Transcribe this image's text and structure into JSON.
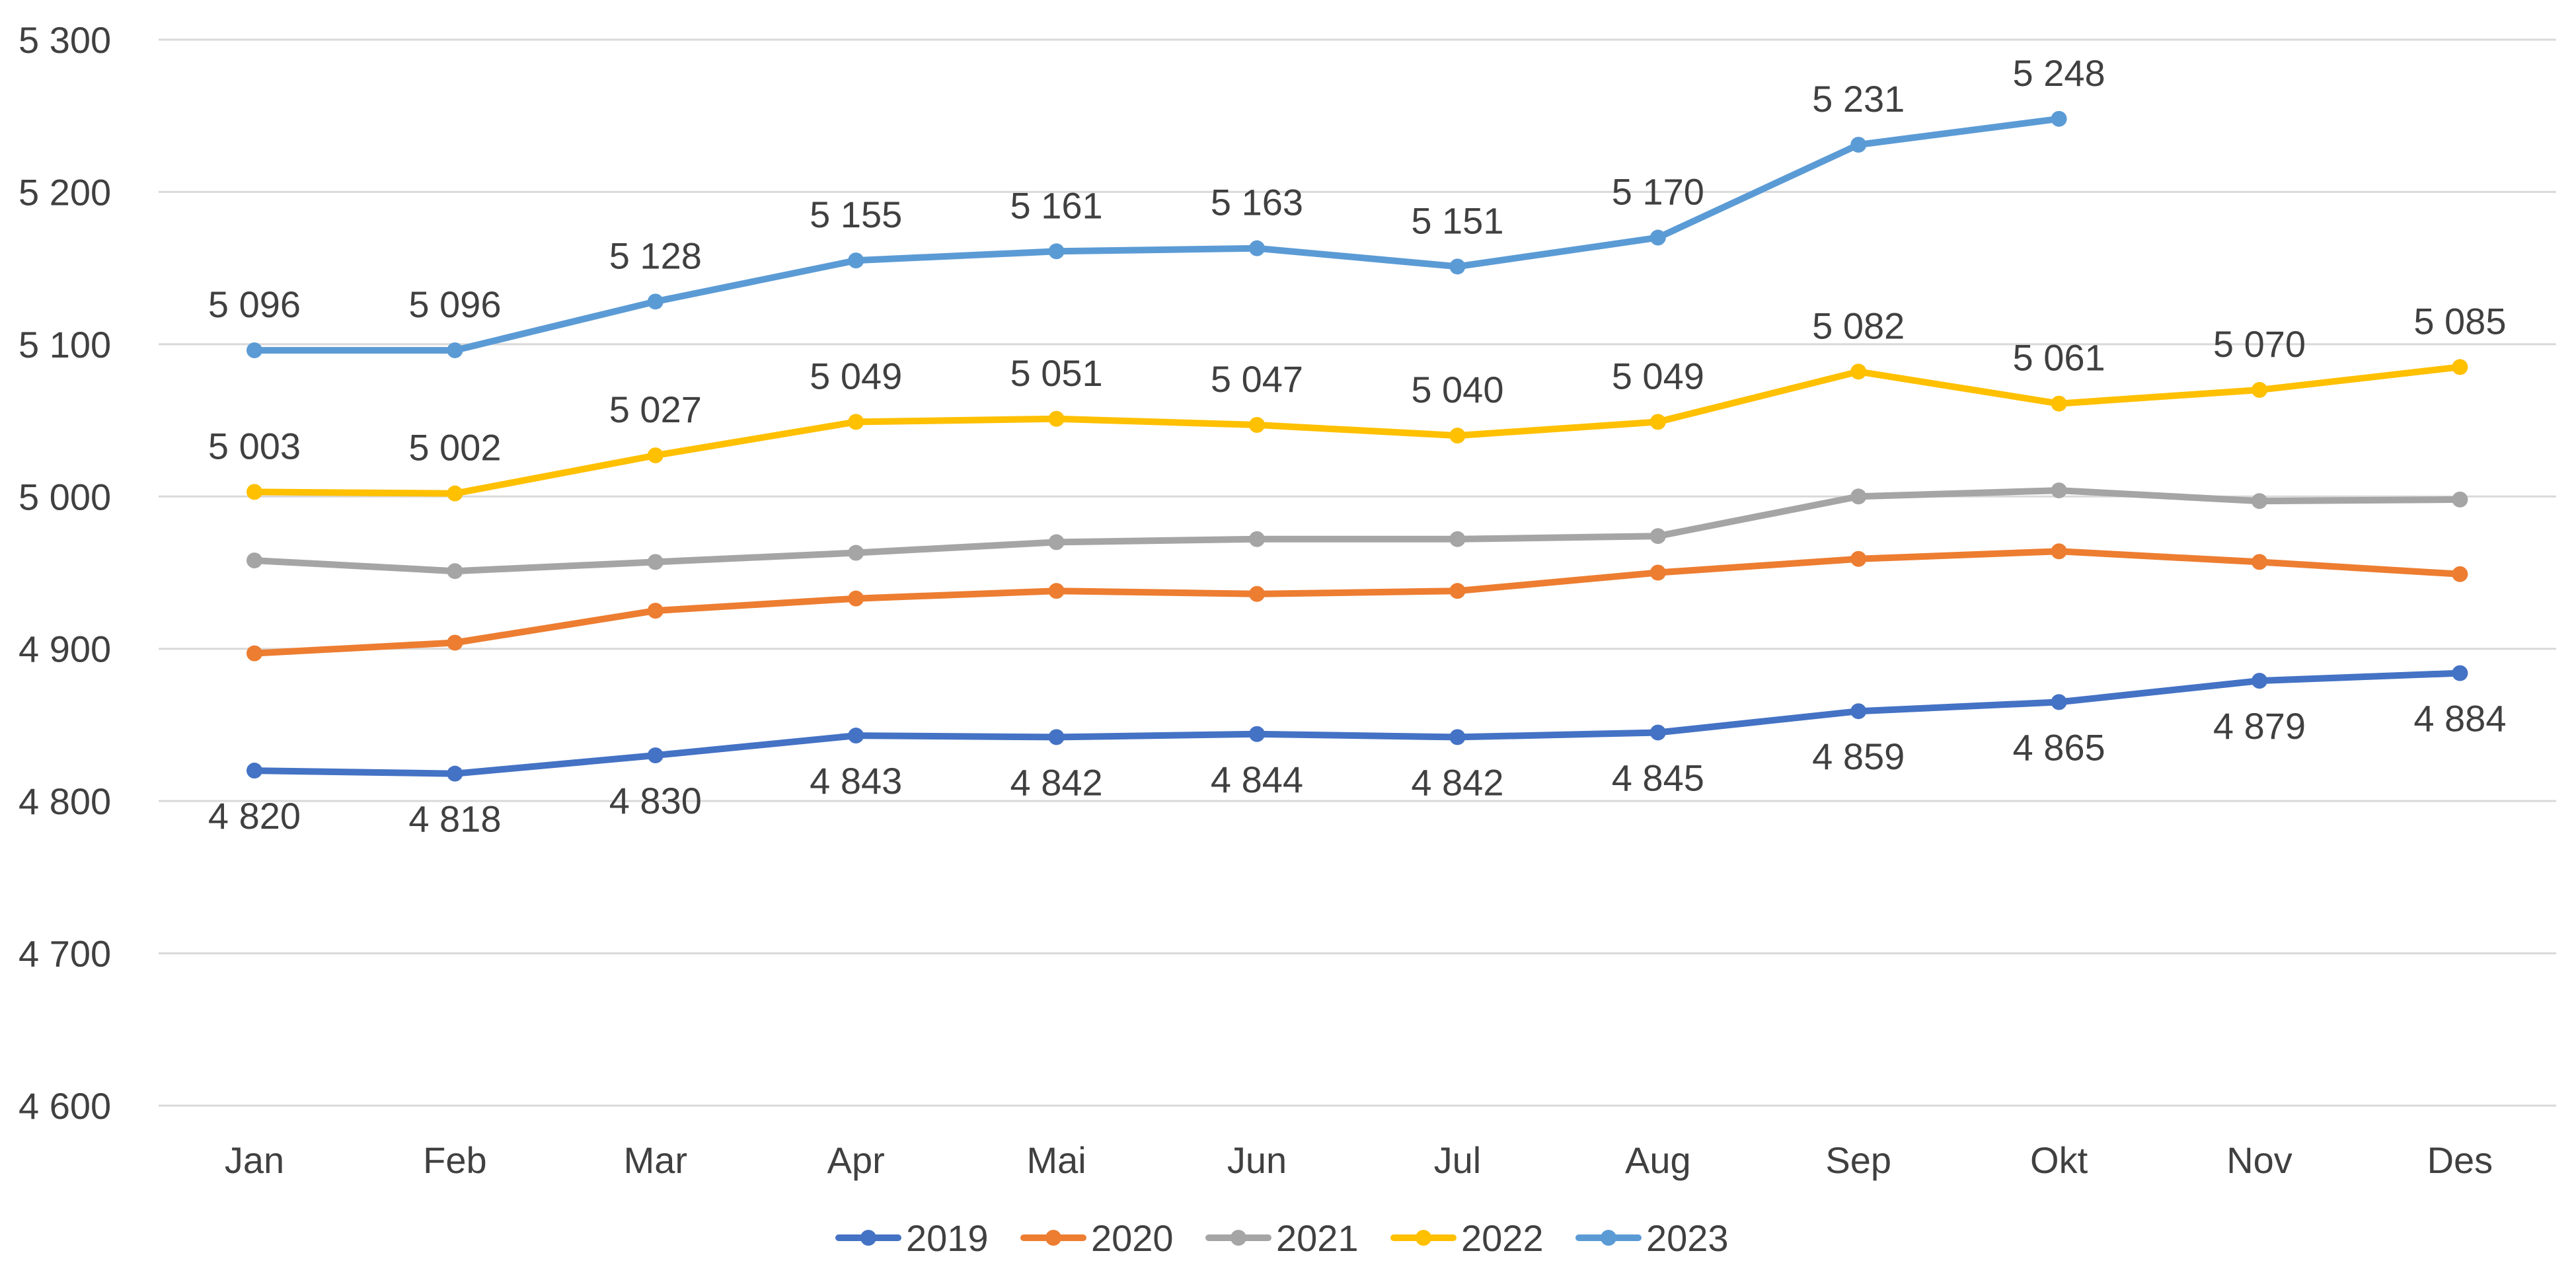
{
  "chart_data": {
    "type": "line",
    "title": "",
    "xlabel": "",
    "ylabel": "",
    "categories": [
      "Jan",
      "Feb",
      "Mar",
      "Apr",
      "Mai",
      "Jun",
      "Jul",
      "Aug",
      "Sep",
      "Okt",
      "Nov",
      "Des"
    ],
    "ylim": [
      4600,
      5300
    ],
    "yticks": [
      4600,
      4700,
      4800,
      4900,
      5000,
      5100,
      5200,
      5300
    ],
    "ytick_labels": [
      "4 600",
      "4 700",
      "4 800",
      "4 900",
      "5 000",
      "5 100",
      "5 200",
      "5 300"
    ],
    "grid": true,
    "legend_position": "bottom",
    "series": [
      {
        "name": "2019",
        "color": "#4472c4",
        "values": [
          4820,
          4818,
          4830,
          4843,
          4842,
          4844,
          4842,
          4845,
          4859,
          4865,
          4879,
          4884
        ],
        "labels": [
          "4 820",
          "4 818",
          "4 830",
          "4 843",
          "4 842",
          "4 844",
          "4 842",
          "4 845",
          "4 859",
          "4 865",
          "4 879",
          "4 884"
        ],
        "label_position": "below"
      },
      {
        "name": "2020",
        "color": "#ed7d31",
        "values": [
          4897,
          4904,
          4925,
          4933,
          4938,
          4936,
          4938,
          4950,
          4959,
          4964,
          4957,
          4949
        ],
        "labels": null,
        "label_position": "none"
      },
      {
        "name": "2021",
        "color": "#a5a5a5",
        "values": [
          4958,
          4951,
          4957,
          4963,
          4970,
          4972,
          4972,
          4974,
          5000,
          5004,
          4997,
          4998
        ],
        "labels": null,
        "label_position": "none"
      },
      {
        "name": "2022",
        "color": "#ffc000",
        "values": [
          5003,
          5002,
          5027,
          5049,
          5051,
          5047,
          5040,
          5049,
          5082,
          5061,
          5070,
          5085
        ],
        "labels": [
          "5 003",
          "5 002",
          "5 027",
          "5 049",
          "5 051",
          "5 047",
          "5 040",
          "5 049",
          "5 082",
          "5 061",
          "5 070",
          "5 085"
        ],
        "label_position": "above"
      },
      {
        "name": "2023",
        "color": "#5b9bd5",
        "values": [
          5096,
          5096,
          5128,
          5155,
          5161,
          5163,
          5151,
          5170,
          5231,
          5248,
          null,
          null
        ],
        "labels": [
          "5 096",
          "5 096",
          "5 128",
          "5 155",
          "5 161",
          "5 163",
          "5 151",
          "5 170",
          "5 231",
          "5 248",
          null,
          null
        ],
        "label_position": "above"
      }
    ]
  }
}
